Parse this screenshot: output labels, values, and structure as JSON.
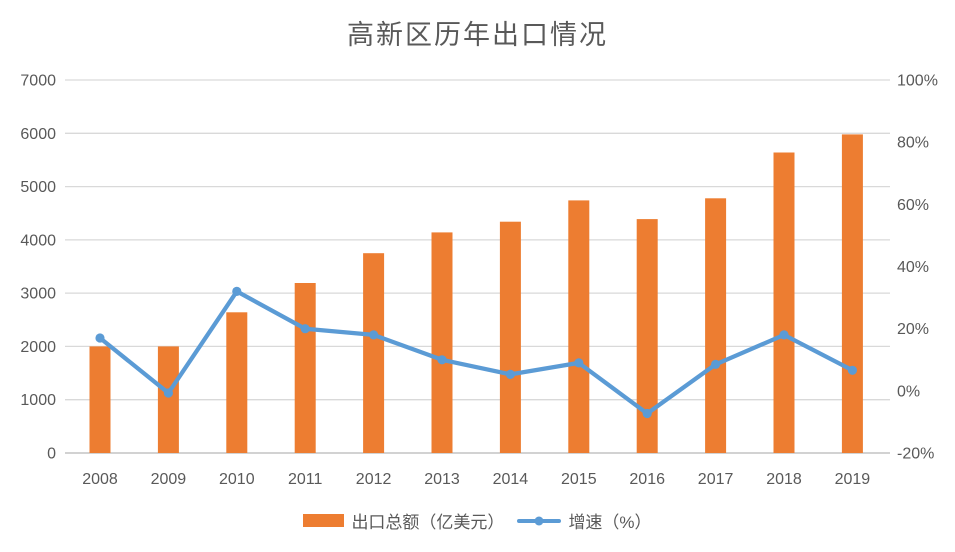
{
  "title": "高新区历年出口情况",
  "colors": {
    "bar": "#ED7D31",
    "line": "#5B9BD5",
    "grid": "#D9D9D9",
    "baseline": "#D2D2D2",
    "text": "#595959"
  },
  "legend": {
    "bar_label": "出口总额（亿美元）",
    "line_label": "增速（%）"
  },
  "chart_data": {
    "type": "combo",
    "title": "高新区历年出口情况",
    "categories": [
      "2008",
      "2009",
      "2010",
      "2011",
      "2012",
      "2013",
      "2014",
      "2015",
      "2016",
      "2017",
      "2018",
      "2019"
    ],
    "series": [
      {
        "name": "出口总额（亿美元）",
        "type": "bar",
        "axis": "left",
        "values": [
          2000,
          2000,
          2640,
          3190,
          3750,
          4140,
          4340,
          4740,
          4390,
          4780,
          5640,
          5980
        ]
      },
      {
        "name": "增速（%）",
        "type": "line",
        "axis": "right",
        "values": [
          17,
          -0.7,
          32,
          20,
          18,
          10,
          5.3,
          9,
          -7.3,
          8.5,
          18,
          6.6
        ]
      }
    ],
    "left_axis": {
      "min": 0,
      "max": 7000,
      "step": 1000,
      "ticks": [
        "0",
        "1000",
        "2000",
        "3000",
        "4000",
        "5000",
        "6000",
        "7000"
      ]
    },
    "right_axis": {
      "min": -20,
      "max": 100,
      "step": 20,
      "ticks": [
        "-20%",
        "0%",
        "20%",
        "40%",
        "60%",
        "80%",
        "100%"
      ]
    },
    "grid": true,
    "legend_position": "bottom"
  }
}
